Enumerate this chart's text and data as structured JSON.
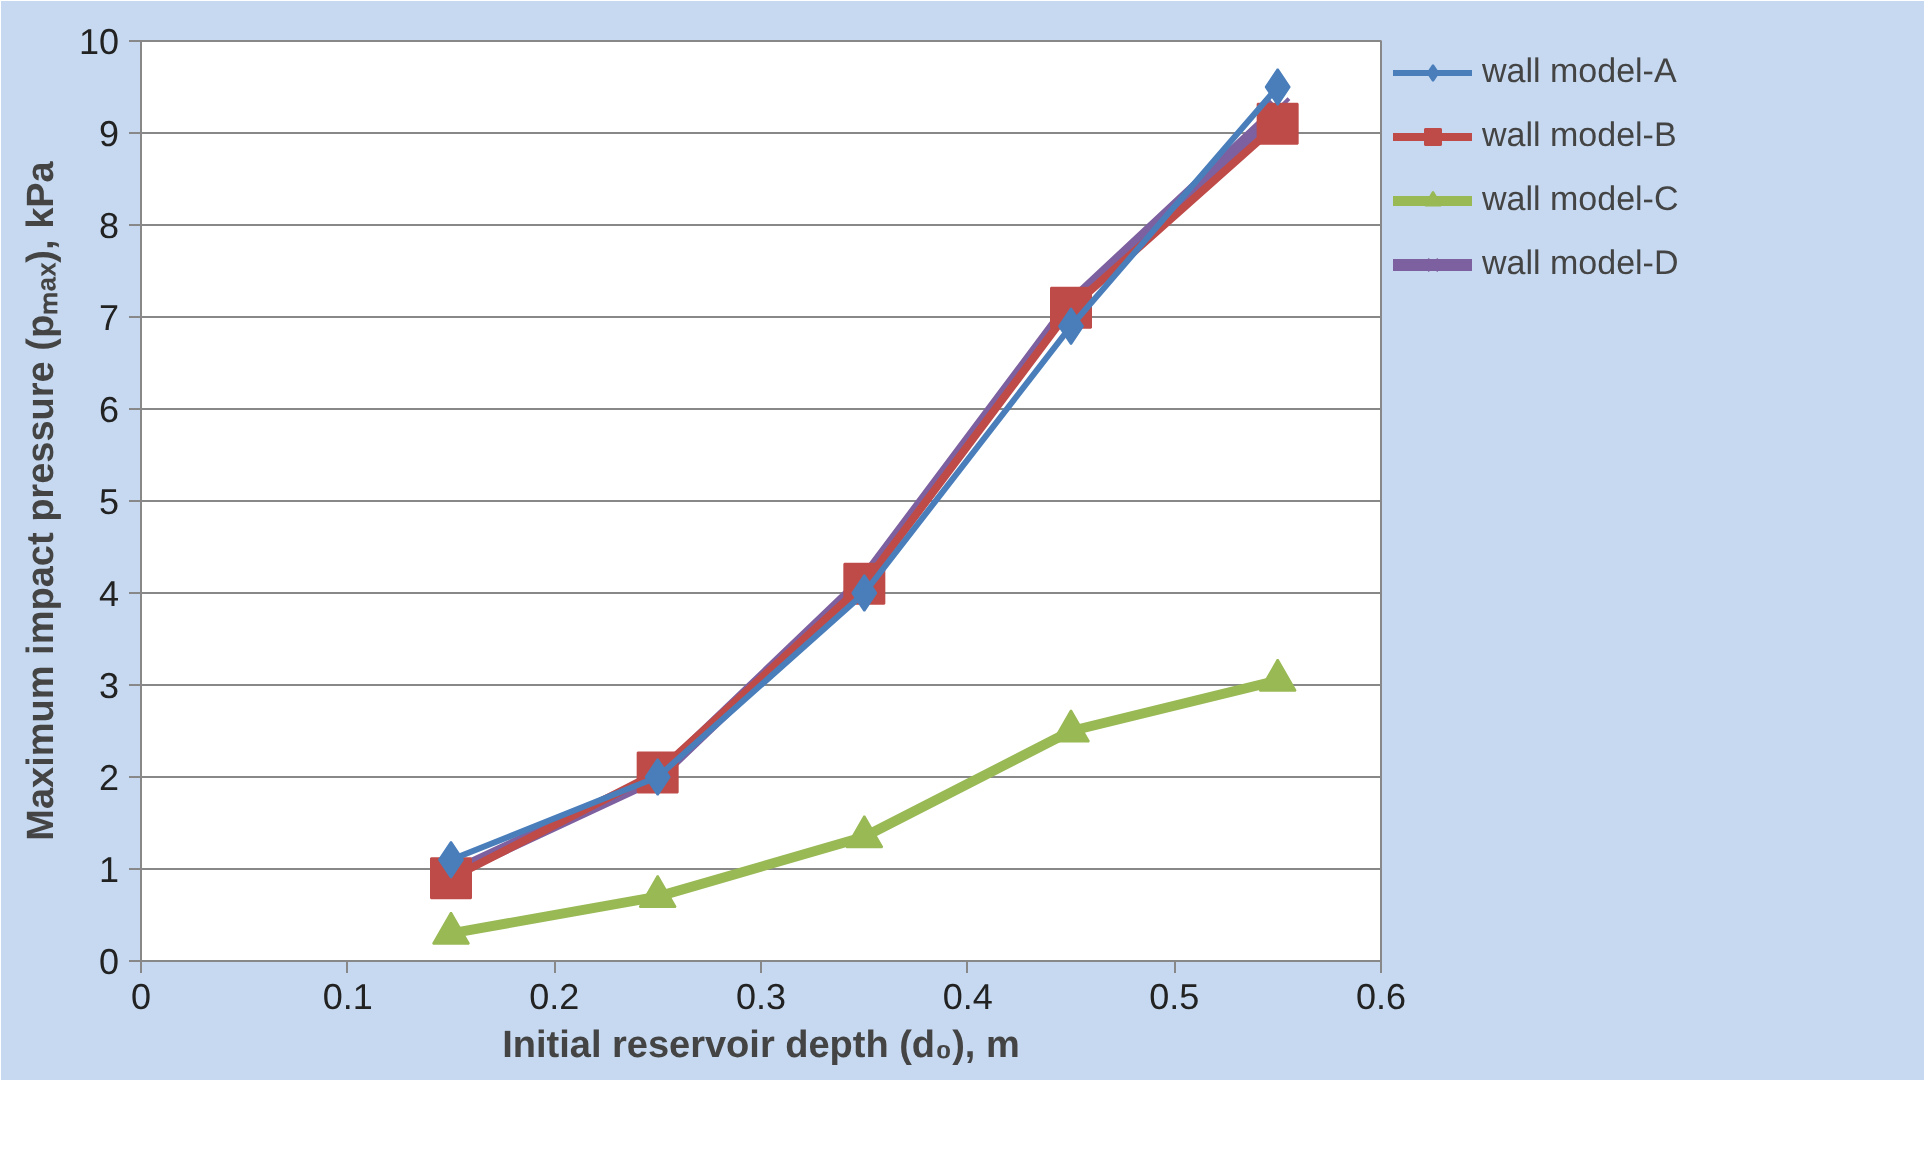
{
  "chart_data": {
    "type": "line",
    "xlabel": "Initial reservoir depth (d₀), m",
    "ylabel": "Maximum impact pressure (pₘₐₓ), kPa",
    "x": [
      0.15,
      0.25,
      0.35,
      0.45,
      0.55
    ],
    "series": [
      {
        "name": "wall model-A",
        "color": "#4a7ebb",
        "marker": "diamond",
        "values": [
          1.1,
          2.0,
          4.0,
          6.9,
          9.5
        ]
      },
      {
        "name": "wall model-B",
        "color": "#be4b48",
        "marker": "square",
        "values": [
          0.9,
          2.05,
          4.1,
          7.1,
          9.1
        ]
      },
      {
        "name": "wall model-C",
        "color": "#98b954",
        "marker": "triangle",
        "values": [
          0.3,
          0.7,
          1.35,
          2.5,
          3.05
        ]
      },
      {
        "name": "wall model-D",
        "color": "#7d60a0",
        "marker": "cross",
        "values": [
          0.95,
          2.0,
          4.15,
          7.15,
          9.25
        ]
      }
    ],
    "xlim": [
      0,
      0.6
    ],
    "xticks": [
      0,
      0.1,
      0.2,
      0.3,
      0.4,
      0.5,
      0.6
    ],
    "ylim": [
      0,
      10
    ],
    "yticks": [
      0,
      1,
      2,
      3,
      4,
      5,
      6,
      7,
      8,
      9,
      10
    ],
    "grid": "y",
    "legend": "right"
  }
}
